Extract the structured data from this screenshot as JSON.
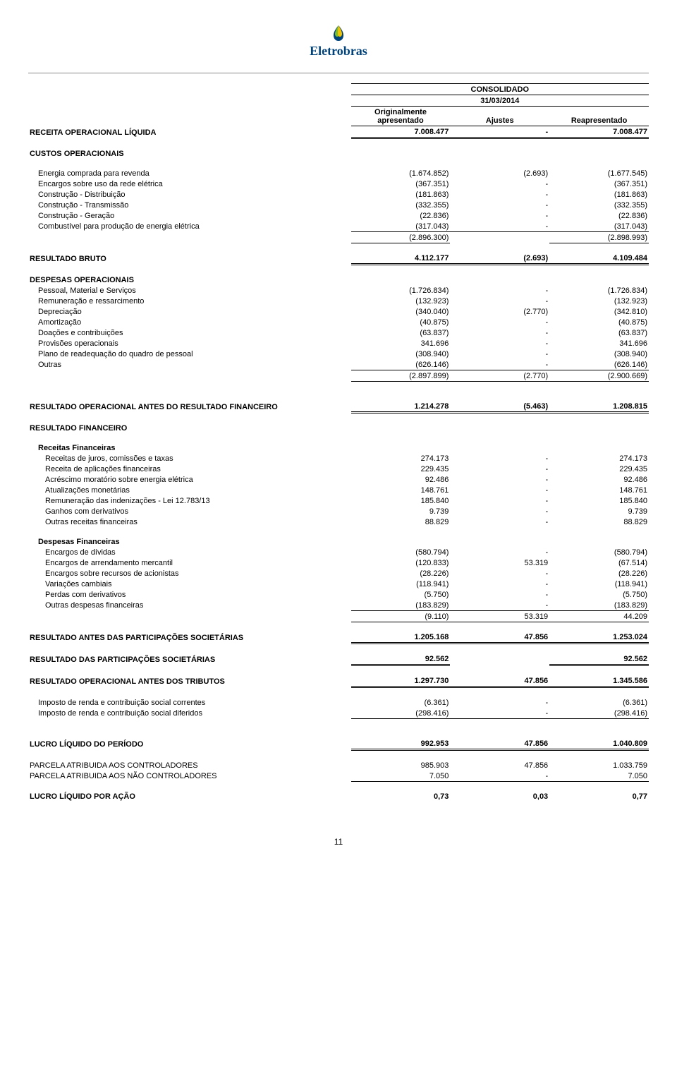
{
  "logo_company": "Eletrobras",
  "header": {
    "consolidado": "CONSOLIDADO",
    "date": "31/03/2014",
    "col1": "Originalmente apresentado",
    "col2": "Ajustes",
    "col3": "Reapresentado"
  },
  "rows": [
    {
      "type": "bold",
      "u": "u2",
      "label": "RECEITA OPERACIONAL LÍQUIDA",
      "v": [
        "7.008.477",
        "-",
        "7.008.477"
      ]
    },
    {
      "type": "spacer"
    },
    {
      "type": "bold",
      "label": "CUSTOS OPERACIONAIS",
      "v": [
        "",
        "",
        ""
      ]
    },
    {
      "type": "spacer"
    },
    {
      "type": "i1",
      "label": "Energia comprada para revenda",
      "v": [
        "(1.674.852)",
        "(2.693)",
        "(1.677.545)"
      ]
    },
    {
      "type": "i1",
      "label": "Encargos sobre uso da rede elétrica",
      "v": [
        "(367.351)",
        "-",
        "(367.351)"
      ]
    },
    {
      "type": "i1",
      "label": "Construção - Distribuição",
      "v": [
        "(181.863)",
        "-",
        "(181.863)"
      ]
    },
    {
      "type": "i1",
      "label": "Construção - Transmissão",
      "v": [
        "(332.355)",
        "-",
        "(332.355)"
      ]
    },
    {
      "type": "i1",
      "label": "Construção - Geração",
      "v": [
        "(22.836)",
        "-",
        "(22.836)"
      ]
    },
    {
      "type": "i1",
      "u": "u1",
      "label": "Combustível para produção de energia elétrica",
      "v": [
        "(317.043)",
        "-",
        "(317.043)"
      ]
    },
    {
      "type": "i1",
      "u": "u1",
      "label": "",
      "v": [
        "(2.896.300)",
        "",
        "(2.898.993)"
      ]
    },
    {
      "type": "spacer"
    },
    {
      "type": "bold",
      "u": "u2",
      "label": "RESULTADO BRUTO",
      "v": [
        "4.112.177",
        "(2.693)",
        "4.109.484"
      ]
    },
    {
      "type": "spacer"
    },
    {
      "type": "bold",
      "label": "DESPESAS OPERACIONAIS",
      "v": [
        "",
        "",
        ""
      ]
    },
    {
      "type": "i1",
      "label": "Pessoal, Material e Serviços",
      "v": [
        "(1.726.834)",
        "-",
        "(1.726.834)"
      ]
    },
    {
      "type": "i1",
      "label": "Remuneração e ressarcimento",
      "v": [
        "(132.923)",
        "-",
        "(132.923)"
      ]
    },
    {
      "type": "i1",
      "label": "Depreciação",
      "v": [
        "(340.040)",
        "(2.770)",
        "(342.810)"
      ]
    },
    {
      "type": "i1",
      "label": "Amortização",
      "v": [
        "(40.875)",
        "-",
        "(40.875)"
      ]
    },
    {
      "type": "i1",
      "label": "Doações e contribuições",
      "v": [
        "(63.837)",
        "-",
        "(63.837)"
      ]
    },
    {
      "type": "i1",
      "label": "Provisões operacionais",
      "v": [
        "341.696",
        "-",
        "341.696"
      ]
    },
    {
      "type": "i1",
      "label": "Plano de readequação do quadro de pessoal",
      "v": [
        "(308.940)",
        "-",
        "(308.940)"
      ]
    },
    {
      "type": "i1",
      "u": "u1",
      "label": "Outras",
      "v": [
        "(626.146)",
        "-",
        "(626.146)"
      ]
    },
    {
      "type": "i1",
      "u": "u1",
      "label": "",
      "v": [
        "(2.897.899)",
        "(2.770)",
        "(2.900.669)"
      ]
    },
    {
      "type": "spacer-lg"
    },
    {
      "type": "bold",
      "u": "u2",
      "label": "RESULTADO OPERACIONAL ANTES DO RESULTADO FINANCEIRO",
      "v": [
        "1.214.278",
        "(5.463)",
        "1.208.815"
      ]
    },
    {
      "type": "spacer"
    },
    {
      "type": "bold",
      "label": "RESULTADO FINANCEIRO",
      "v": [
        "",
        "",
        ""
      ]
    },
    {
      "type": "spacer"
    },
    {
      "type": "i1bold",
      "label": "Receitas Financeiras",
      "v": [
        "",
        "",
        ""
      ]
    },
    {
      "type": "i2",
      "label": "Receitas de juros, comissões e taxas",
      "v": [
        "274.173",
        "-",
        "274.173"
      ]
    },
    {
      "type": "i2",
      "label": "Receita de aplicações financeiras",
      "v": [
        "229.435",
        "-",
        "229.435"
      ]
    },
    {
      "type": "i2",
      "label": "Acréscimo moratório sobre energia elétrica",
      "v": [
        "92.486",
        "-",
        "92.486"
      ]
    },
    {
      "type": "i2",
      "label": "Atualizações monetárias",
      "v": [
        "148.761",
        "-",
        "148.761"
      ]
    },
    {
      "type": "i2",
      "label": "Remuneração das indenizações - Lei 12.783/13",
      "v": [
        "185.840",
        "-",
        "185.840"
      ]
    },
    {
      "type": "i2",
      "label": "Ganhos com derivativos",
      "v": [
        "9.739",
        "-",
        "9.739"
      ]
    },
    {
      "type": "i2",
      "label": "Outras receitas financeiras",
      "v": [
        "88.829",
        "-",
        "88.829"
      ]
    },
    {
      "type": "spacer"
    },
    {
      "type": "i1bold",
      "label": "Despesas Financeiras",
      "v": [
        "",
        "",
        ""
      ]
    },
    {
      "type": "i2",
      "label": "Encargos de dívidas",
      "v": [
        "(580.794)",
        "-",
        "(580.794)"
      ]
    },
    {
      "type": "i2",
      "label": "Encargos de arrendamento mercantil",
      "v": [
        "(120.833)",
        "53.319",
        "(67.514)"
      ]
    },
    {
      "type": "i2",
      "label": "Encargos sobre recursos de acionistas",
      "v": [
        "(28.226)",
        "-",
        "(28.226)"
      ]
    },
    {
      "type": "i2",
      "label": "Variações cambiais",
      "v": [
        "(118.941)",
        "-",
        "(118.941)"
      ]
    },
    {
      "type": "i2",
      "label": "Perdas com derivativos",
      "v": [
        "(5.750)",
        "-",
        "(5.750)"
      ]
    },
    {
      "type": "i2",
      "u": "u1",
      "label": "Outras despesas financeiras",
      "v": [
        "(183.829)",
        "-",
        "(183.829)"
      ]
    },
    {
      "type": "i2",
      "u": "u1",
      "label": "",
      "v": [
        "(9.110)",
        "53.319",
        "44.209"
      ]
    },
    {
      "type": "spacer"
    },
    {
      "type": "bold",
      "u": "u2",
      "label": "RESULTADO ANTES DAS PARTICIPAÇÕES SOCIETÁRIAS",
      "v": [
        "1.205.168",
        "47.856",
        "1.253.024"
      ]
    },
    {
      "type": "spacer"
    },
    {
      "type": "bold",
      "u": "u2",
      "label": "RESULTADO DAS PARTICIPAÇÕES SOCIETÁRIAS",
      "v": [
        "92.562",
        "",
        "92.562"
      ]
    },
    {
      "type": "spacer"
    },
    {
      "type": "bold",
      "u": "u2",
      "label": "RESULTADO OPERACIONAL ANTES DOS TRIBUTOS",
      "v": [
        "1.297.730",
        "47.856",
        "1.345.586"
      ]
    },
    {
      "type": "spacer"
    },
    {
      "type": "i1",
      "label": "Imposto de renda e contribuição social correntes",
      "v": [
        "(6.361)",
        "-",
        "(6.361)"
      ]
    },
    {
      "type": "i1",
      "u": "u1",
      "label": "Imposto de renda e contribuição social diferidos",
      "v": [
        "(298.416)",
        "-",
        "(298.416)"
      ]
    },
    {
      "type": "spacer-lg"
    },
    {
      "type": "bold",
      "u": "u2",
      "label": "LUCRO LÍQUIDO DO PERÍODO",
      "v": [
        "992.953",
        "47.856",
        "1.040.809"
      ]
    },
    {
      "type": "spacer"
    },
    {
      "type": "plain",
      "label": "PARCELA ATRIBUIDA AOS CONTROLADORES",
      "v": [
        "985.903",
        "47.856",
        "1.033.759"
      ]
    },
    {
      "type": "plain",
      "u": "u1",
      "label": "PARCELA ATRIBUIDA AOS NÃO CONTROLADORES",
      "v": [
        "7.050",
        "-",
        "7.050"
      ]
    },
    {
      "type": "spacer"
    },
    {
      "type": "bold",
      "label": "LUCRO LÍQUIDO POR AÇÃO",
      "v": [
        "0,73",
        "0,03",
        "0,77"
      ]
    }
  ],
  "page_number": "11"
}
